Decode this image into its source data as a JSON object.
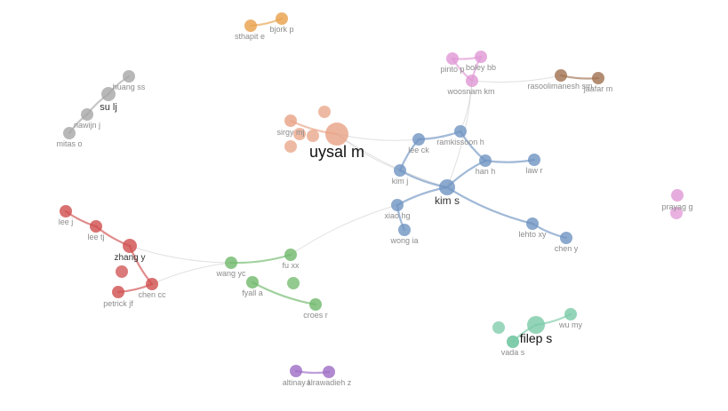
{
  "network": {
    "clusters": {
      "orange": {
        "color": "#e8a04a"
      },
      "salmon": {
        "color": "#e8a184"
      },
      "blue": {
        "color": "#6f94c2"
      },
      "red": {
        "color": "#cf4d4d"
      },
      "green": {
        "color": "#6fb86a"
      },
      "gray": {
        "color": "#a6a6a6"
      },
      "pink": {
        "color": "#e097d5"
      },
      "brown": {
        "color": "#a07050"
      },
      "teal": {
        "color": "#79c9a6"
      },
      "purple": {
        "color": "#9d6cc4"
      }
    },
    "nodes": [
      {
        "id": "sthapit_e",
        "label": "sthapit e"
      },
      {
        "id": "bjork_p",
        "label": "bjork p"
      },
      {
        "id": "huang_ss",
        "label": "huang ss"
      },
      {
        "id": "su_lj",
        "label": "su lj"
      },
      {
        "id": "nawijn_j",
        "label": "nawijn j"
      },
      {
        "id": "mitas_o",
        "label": "mitas o"
      },
      {
        "id": "pinto_p",
        "label": "pinto p"
      },
      {
        "id": "boley_bb",
        "label": "boley bb"
      },
      {
        "id": "woosnam_km",
        "label": "woosnam km"
      },
      {
        "id": "rasoolimanesh_sm",
        "label": "rasoolimanesh sm"
      },
      {
        "id": "jaafar_m",
        "label": "jaafar m"
      },
      {
        "id": "sirgy_mj",
        "label": "sirgy mj"
      },
      {
        "id": "uysal_m",
        "label": "uysal m"
      },
      {
        "id": "lee_ck",
        "label": "lee ck"
      },
      {
        "id": "ramkissoon_h",
        "label": "ramkissoon h"
      },
      {
        "id": "kim_j",
        "label": "kim j"
      },
      {
        "id": "han_h",
        "label": "han h"
      },
      {
        "id": "law_r",
        "label": "law r"
      },
      {
        "id": "kim_s",
        "label": "kim s"
      },
      {
        "id": "xiao_hg",
        "label": "xiao hg"
      },
      {
        "id": "wong_ia",
        "label": "wong ia"
      },
      {
        "id": "lehto_xy",
        "label": "lehto xy"
      },
      {
        "id": "chen_y",
        "label": "chen y"
      },
      {
        "id": "prayag_g",
        "label": "prayag g"
      },
      {
        "id": "lee_j",
        "label": "lee j"
      },
      {
        "id": "lee_tj",
        "label": "lee tj"
      },
      {
        "id": "zhang_y",
        "label": "zhang y"
      },
      {
        "id": "wang_yc",
        "label": "wang yc"
      },
      {
        "id": "fu_xx",
        "label": "fu xx"
      },
      {
        "id": "fyall_a",
        "label": "fyall a"
      },
      {
        "id": "petrick_jf",
        "label": "petrick jf"
      },
      {
        "id": "chen_cc",
        "label": "chen cc"
      },
      {
        "id": "croes_r",
        "label": "croes r"
      },
      {
        "id": "filep_s",
        "label": "filep s"
      },
      {
        "id": "wu_my",
        "label": "wu my"
      },
      {
        "id": "vada_s",
        "label": "vada s"
      },
      {
        "id": "altinay_l",
        "label": "altinay l"
      },
      {
        "id": "alrawadieh_z",
        "label": "alrawadieh z"
      }
    ],
    "edges": [
      [
        "sthapit_e",
        "bjork_p"
      ],
      [
        "huang_ss",
        "su_lj"
      ],
      [
        "su_lj",
        "nawijn_j"
      ],
      [
        "nawijn_j",
        "mitas_o"
      ],
      [
        "pinto_p",
        "boley_bb"
      ],
      [
        "pinto_p",
        "woosnam_km"
      ],
      [
        "boley_bb",
        "woosnam_km"
      ],
      [
        "woosnam_km",
        "rasoolimanesh_sm"
      ],
      [
        "rasoolimanesh_sm",
        "jaafar_m"
      ],
      [
        "sirgy_mj",
        "uysal_m"
      ],
      [
        "uysal_m",
        "lee_ck"
      ],
      [
        "uysal_m",
        "kim_s"
      ],
      [
        "uysal_m",
        "kim_j"
      ],
      [
        "lee_ck",
        "ramkissoon_h"
      ],
      [
        "lee_ck",
        "kim_j"
      ],
      [
        "ramkissoon_h",
        "han_h"
      ],
      [
        "ramkissoon_h",
        "woosnam_km"
      ],
      [
        "kim_j",
        "kim_s"
      ],
      [
        "han_h",
        "law_r"
      ],
      [
        "han_h",
        "kim_s"
      ],
      [
        "kim_s",
        "xiao_hg"
      ],
      [
        "kim_s",
        "lehto_xy"
      ],
      [
        "kim_s",
        "woosnam_km"
      ],
      [
        "xiao_hg",
        "wong_ia"
      ],
      [
        "xiao_hg",
        "fu_xx"
      ],
      [
        "lehto_xy",
        "chen_y"
      ],
      [
        "lee_j",
        "lee_tj"
      ],
      [
        "lee_tj",
        "zhang_y"
      ],
      [
        "zhang_y",
        "wang_yc"
      ],
      [
        "zhang_y",
        "chen_cc"
      ],
      [
        "wang_yc",
        "fu_xx"
      ],
      [
        "wang_yc",
        "chen_cc"
      ],
      [
        "fyall_a",
        "croes_r"
      ],
      [
        "petrick_jf",
        "chen_cc"
      ],
      [
        "filep_s",
        "wu_my"
      ],
      [
        "filep_s",
        "vada_s"
      ],
      [
        "altinay_l",
        "alrawadieh_z"
      ]
    ]
  }
}
